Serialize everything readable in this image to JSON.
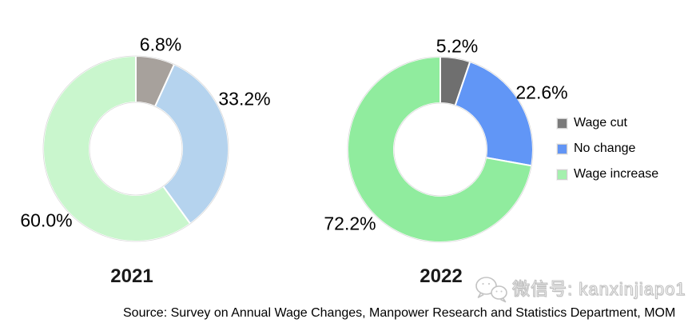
{
  "chart_data": {
    "type": "pie",
    "subtype": "donut",
    "legend_position": "right",
    "charts": [
      {
        "title": "2021",
        "start_angle_deg": 0,
        "direction": "clockwise",
        "slices": [
          {
            "name": "Wage cut",
            "value": 6.8,
            "label": "6.8%",
            "color": "#a7a19c"
          },
          {
            "name": "No change",
            "value": 33.2,
            "label": "33.2%",
            "color": "#b5d3ee"
          },
          {
            "name": "Wage increase",
            "value": 60.0,
            "label": "60.0%",
            "color": "#c9f6cd"
          }
        ]
      },
      {
        "title": "2022",
        "start_angle_deg": 0,
        "direction": "clockwise",
        "slices": [
          {
            "name": "Wage cut",
            "value": 5.2,
            "label": "5.2%",
            "color": "#6f6f6f"
          },
          {
            "name": "No change",
            "value": 22.6,
            "label": "22.6%",
            "color": "#6196f6"
          },
          {
            "name": "Wage increase",
            "value": 72.2,
            "label": "72.2%",
            "color": "#90ec9e"
          }
        ]
      }
    ],
    "legend": {
      "items": [
        {
          "label": "Wage cut",
          "color": "#7a7a7a"
        },
        {
          "label": "No change",
          "color": "#6295f5"
        },
        {
          "label": "Wage increase",
          "color": "#a5f0ae"
        }
      ]
    },
    "slice_border_color": "#ffffff",
    "ring_outline_color": "#d9d9d9"
  },
  "source_note": "Source: Survey on Annual Wage Changes, Manpower Research and Statistics Department, MOM",
  "watermark": {
    "icon": "wechat-icon",
    "text": "微信号: kanxinjiapo1"
  }
}
